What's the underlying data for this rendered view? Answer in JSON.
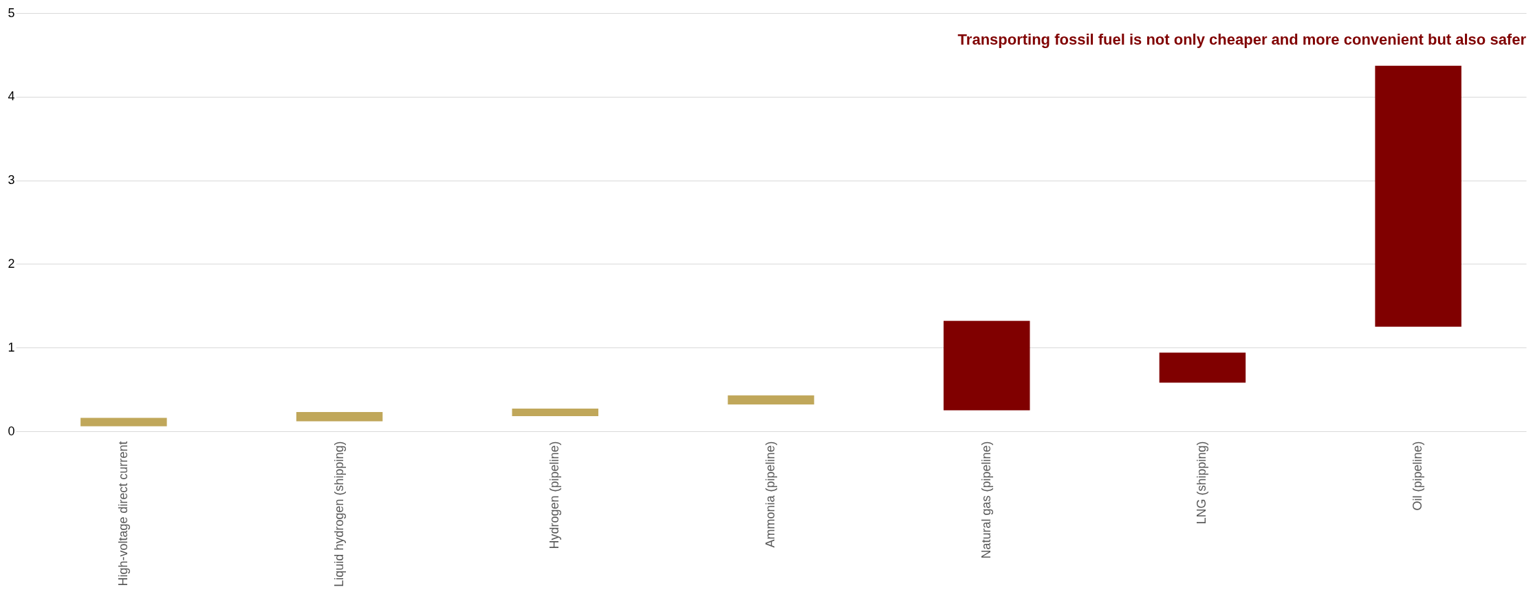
{
  "chart_data": {
    "type": "bar",
    "title": "Transporting fossil fuel is not only cheaper and more convenient but also safer",
    "categories": [
      "High-voltage direct current",
      "Liquid hydrogen (shipping)",
      "Hydrogen (pipeline)",
      "Ammonia (pipeline)",
      "Natural gas (pipeline)",
      "LNG (shipping)",
      "Oil (pipeline)"
    ],
    "base": [
      0.06,
      0.12,
      0.18,
      0.32,
      0.25,
      0.58,
      1.25
    ],
    "values": [
      0.1,
      0.11,
      0.09,
      0.11,
      1.07,
      0.36,
      3.12
    ],
    "colors": [
      "#c0a75a",
      "#c0a75a",
      "#c0a75a",
      "#c0a75a",
      "#800000",
      "#800000",
      "#800000"
    ],
    "ylim": [
      0,
      5
    ],
    "yticks": [
      0,
      1,
      2,
      3,
      4,
      5
    ],
    "grid": "y"
  }
}
